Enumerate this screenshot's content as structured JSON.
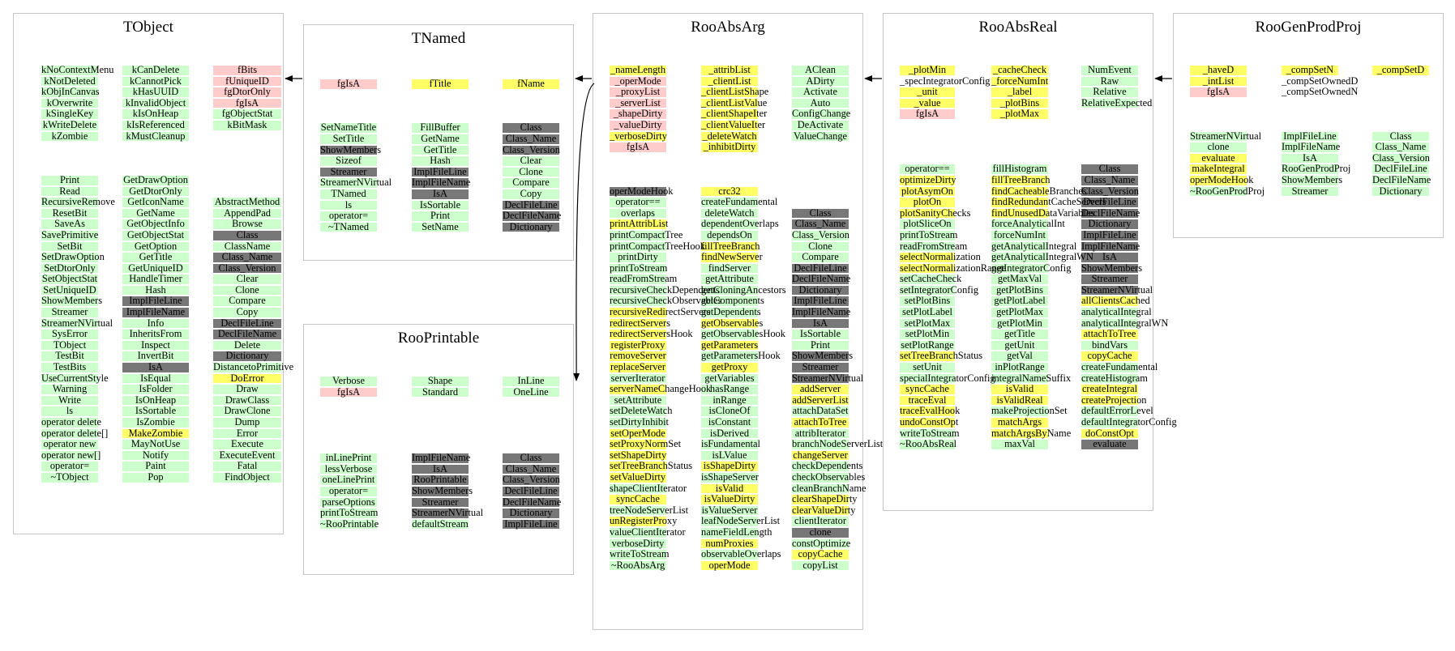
{
  "classes": {
    "tobject": {
      "title": "TObject",
      "c1": [
        "kNoContextMenu",
        "kNotDeleted",
        "kObjInCanvas",
        "kOverwrite",
        "kSingleKey",
        "kWriteDelete",
        "kZombie",
        "",
        "",
        "",
        "Print",
        "Read",
        "RecursiveRemove",
        "ResetBit",
        "SaveAs",
        "SavePrimitive",
        "SetBit",
        "SetDrawOption",
        "SetDtorOnly",
        "SetObjectStat",
        "SetUniqueID",
        "ShowMembers",
        "Streamer",
        "StreamerNVirtual",
        "SysError",
        "TObject",
        "TestBit",
        "TestBits",
        "UseCurrentStyle",
        "Warning",
        "Write",
        "ls",
        "operator delete",
        "operator delete[]",
        "operator new",
        "operator new[]",
        "operator=",
        "~TObject"
      ],
      "c2": [
        "kCanDelete",
        "kCannotPick",
        "kHasUUID",
        "kInvalidObject",
        "kIsOnHeap",
        "kIsReferenced",
        "kMustCleanup",
        "",
        "",
        "",
        "GetDrawOption",
        "GetDtorOnly",
        "GetIconName",
        "GetName",
        "GetObjectInfo",
        "GetObjectStat",
        "GetOption",
        "GetTitle",
        "GetUniqueID",
        "HandleTimer",
        "Hash",
        "ImplFileLine",
        "ImplFileName",
        "Info",
        "InheritsFrom",
        "Inspect",
        "InvertBit",
        "IsA",
        "IsEqual",
        "IsFolder",
        "IsOnHeap",
        "IsSortable",
        "IsZombie",
        "MakeZombie",
        "MayNotUse",
        "Notify",
        "Paint",
        "Pop"
      ],
      "c3": [
        "fBits",
        "fUniqueID",
        "fgDtorOnly",
        "fgIsA",
        "fgObjectStat",
        "kBitMask",
        "",
        "",
        "",
        "",
        "",
        "",
        "AbstractMethod",
        "AppendPad",
        "Browse",
        "Class",
        "ClassName",
        "Class_Name",
        "Class_Version",
        "Clear",
        "Clone",
        "Compare",
        "Copy",
        "DeclFileLine",
        "DeclFileName",
        "Delete",
        "Dictionary",
        "DistancetoPrimitive",
        "DoError",
        "Draw",
        "DrawClass",
        "DrawClone",
        "Dump",
        "Error",
        "Execute",
        "ExecuteEvent",
        "Fatal",
        "FindObject"
      ]
    },
    "tnamed": {
      "title": "TNamed",
      "c1": [
        "fgIsA",
        "",
        "",
        "",
        "SetNameTitle",
        "SetTitle",
        "ShowMembers",
        "Sizeof",
        "Streamer",
        "StreamerNVirtual",
        "TNamed",
        "ls",
        "operator=",
        "~TNamed"
      ],
      "c2": [
        "fTitle",
        "",
        "",
        "",
        "FillBuffer",
        "GetName",
        "GetTitle",
        "Hash",
        "ImplFileLine",
        "ImplFileName",
        "IsA",
        "IsSortable",
        "Print",
        "SetName"
      ],
      "c3": [
        "fName",
        "",
        "",
        "",
        "Class",
        "Class_Name",
        "Class_Version",
        "Clear",
        "Clone",
        "Compare",
        "Copy",
        "DeclFileLine",
        "DeclFileName",
        "Dictionary"
      ]
    },
    "rooprintable": {
      "title": "RooPrintable",
      "c1": [
        "Verbose",
        "fgIsA",
        "",
        "",
        "",
        "",
        "",
        "inLinePrint",
        "lessVerbose",
        "oneLinePrint",
        "operator=",
        "parseOptions",
        "printToStream",
        "~RooPrintable"
      ],
      "c2": [
        "Shape",
        "Standard",
        "",
        "",
        "",
        "",
        "",
        "ImplFileName",
        "IsA",
        "RooPrintable",
        "ShowMembers",
        "Streamer",
        "StreamerNVirtual",
        "defaultStream"
      ],
      "c3": [
        "InLine",
        "OneLine",
        "",
        "",
        "",
        "",
        "",
        "Class",
        "Class_Name",
        "Class_Version",
        "DeclFileLine",
        "DeclFileName",
        "Dictionary",
        "ImplFileLine"
      ]
    },
    "rooabsarg": {
      "title": "RooAbsArg",
      "c1": [
        "_nameLength",
        "_operMode",
        "_proxyList",
        "_serverList",
        "_shapeDirty",
        "_valueDirty",
        "_verboseDirty",
        "fgIsA",
        "",
        "",
        "",
        "operModeHook",
        "operator==",
        "overlaps",
        "printAttribList",
        "printCompactTree",
        "printCompactTreeHook",
        "printDirty",
        "printToStream",
        "readFromStream",
        "recursiveCheckDependents",
        "recursiveCheckObservables",
        "recursiveRedirectServers",
        "redirectServers",
        "redirectServersHook",
        "registerProxy",
        "removeServer",
        "replaceServer",
        "serverIterator",
        "serverNameChangeHook",
        "setAttribute",
        "setDeleteWatch",
        "setDirtyInhibit",
        "setOperMode",
        "setProxyNormSet",
        "setShapeDirty",
        "setTreeBranchStatus",
        "setValueDirty",
        "shapeClientIterator",
        "syncCache",
        "treeNodeServerList",
        "unRegisterProxy",
        "valueClientIterator",
        "verboseDirty",
        "writeToStream",
        "~RooAbsArg"
      ],
      "c2": [
        "_attribList",
        "_clientList",
        "_clientListShape",
        "_clientListValue",
        "_clientShapeIter",
        "_clientValueIter",
        "_deleteWatch",
        "_inhibitDirty",
        "",
        "",
        "",
        "crc32",
        "createFundamental",
        "deleteWatch",
        "dependentOverlaps",
        "dependsOn",
        "fillTreeBranch",
        "findNewServer",
        "findServer",
        "getAttribute",
        "getCloningAncestors",
        "getComponents",
        "getDependents",
        "getObservables",
        "getObservablesHook",
        "getParameters",
        "getParametersHook",
        "getProxy",
        "getVariables",
        "hasRange",
        "inRange",
        "isCloneOf",
        "isConstant",
        "isDerived",
        "isFundamental",
        "isLValue",
        "isShapeDirty",
        "isShapeServer",
        "isValid",
        "isValueDirty",
        "isValueServer",
        "leafNodeServerList",
        "nameFieldLength",
        "numProxies",
        "observableOverlaps",
        "operMode"
      ],
      "c3": [
        "AClean",
        "ADirty",
        "Activate",
        "Auto",
        "ConfigChange",
        "DeActivate",
        "ValueChange",
        "",
        "",
        "",
        "",
        "",
        "",
        "Class",
        "Class_Name",
        "Class_Version",
        "Clone",
        "Compare",
        "DeclFileLine",
        "DeclFileName",
        "Dictionary",
        "ImplFileLine",
        "ImplFileName",
        "IsA",
        "IsSortable",
        "Print",
        "ShowMembers",
        "Streamer",
        "StreamerNVirtual",
        "addServer",
        "addServerList",
        "attachDataSet",
        "attachToTree",
        "attribIterator",
        "branchNodeServerList",
        "changeServer",
        "checkDependents",
        "checkObservables",
        "cleanBranchName",
        "clearShapeDirty",
        "clearValueDirty",
        "clientIterator",
        "clone",
        "constOptimize",
        "copyCache",
        "copyList"
      ]
    },
    "rooabsreal": {
      "title": "RooAbsReal",
      "c1": [
        "_plotMin",
        "_specIntegratorConfig",
        "_unit",
        "_value",
        "fgIsA",
        "",
        "",
        "",
        "",
        "operator==",
        "optimizeDirty",
        "plotAsymOn",
        "plotOn",
        "plotSanityChecks",
        "plotSliceOn",
        "printToStream",
        "readFromStream",
        "selectNormalization",
        "selectNormalizationRange",
        "setCacheCheck",
        "setIntegratorConfig",
        "setPlotBins",
        "setPlotLabel",
        "setPlotMax",
        "setPlotMin",
        "setPlotRange",
        "setTreeBranchStatus",
        "setUnit",
        "specialIntegratorConfig",
        "syncCache",
        "traceEval",
        "traceEvalHook",
        "undoConstOpt",
        "writeToStream",
        "~RooAbsReal"
      ],
      "c2": [
        "_cacheCheck",
        "_forceNumInt",
        "_label",
        "_plotBins",
        "_plotMax",
        "",
        "",
        "",
        "",
        "fillHistogram",
        "fillTreeBranch",
        "findCacheableBranches",
        "findRedundantCacheServers",
        "findUnusedDataVariables",
        "forceAnalyticalInt",
        "forceNumInt",
        "getAnalyticalIntegral",
        "getAnalyticalIntegralWN",
        "getIntegratorConfig",
        "getMaxVal",
        "getPlotBins",
        "getPlotLabel",
        "getPlotMax",
        "getPlotMin",
        "getTitle",
        "getUnit",
        "getVal",
        "inPlotRange",
        "integralNameSuffix",
        "isValid",
        "isValidReal",
        "makeProjectionSet",
        "matchArgs",
        "matchArgsByName",
        "maxVal"
      ],
      "c3": [
        "NumEvent",
        "Raw",
        "Relative",
        "RelativeExpected",
        "",
        "",
        "",
        "",
        "",
        "Class",
        "Class_Name",
        "Class_Version",
        "DeclFileLine",
        "DeclFileName",
        "Dictionary",
        "ImplFileLine",
        "ImplFileName",
        "IsA",
        "ShowMembers",
        "Streamer",
        "StreamerNVirtual",
        "allClientsCached",
        "analyticalIntegral",
        "analyticalIntegralWN",
        "attachToTree",
        "bindVars",
        "copyCache",
        "createFundamental",
        "createHistogram",
        "createIntegral",
        "createProjection",
        "defaultErrorLevel",
        "defaultIntegratorConfig",
        "doConstOpt",
        "evaluate"
      ]
    },
    "roogenprodproj": {
      "title": "RooGenProdProj",
      "c1": [
        "_haveD",
        "_intList",
        "fgIsA",
        "",
        "",
        "",
        "StreamerNVirtual",
        "clone",
        "evaluate",
        "makeIntegral",
        "operModeHook",
        "~RooGenProdProj"
      ],
      "c2": [
        "_compSetN",
        "_compSetOwnedD",
        "_compSetOwnedN",
        "",
        "",
        "",
        "ImplFileLine",
        "ImplFileName",
        "IsA",
        "RooGenProdProj",
        "ShowMembers",
        "Streamer"
      ],
      "c3": [
        "_compSetD",
        "",
        "",
        "",
        "",
        "",
        "Class",
        "Class_Name",
        "Class_Version",
        "DeclFileLine",
        "DeclFileName",
        "Dictionary"
      ]
    }
  },
  "colors": {
    "public": "#ccffcc",
    "protected": "#ffff66",
    "private": "#ffcccc",
    "inherited": "#777777",
    "border": "#c4c4c4"
  }
}
